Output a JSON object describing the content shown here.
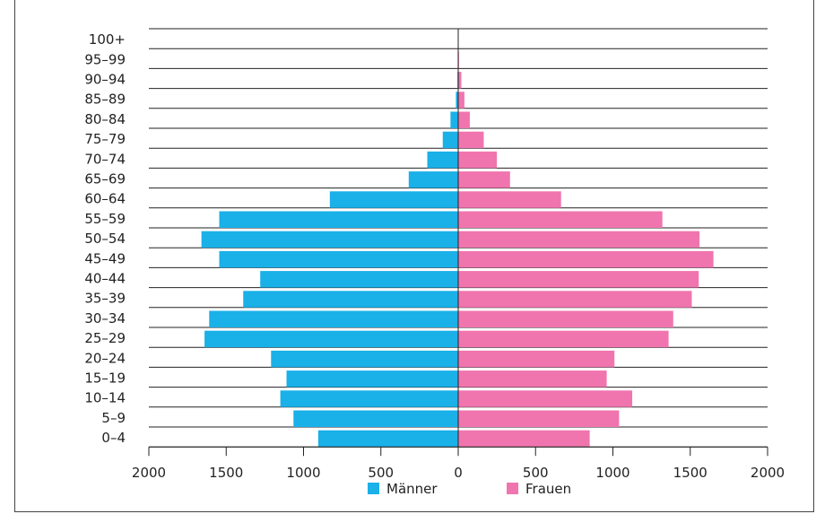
{
  "chart_data": {
    "type": "bar",
    "orientation": "horizontal",
    "categories": [
      "0–4",
      "5–9",
      "10–14",
      "15–19",
      "20–24",
      "25–29",
      "30–34",
      "35–39",
      "40–44",
      "45–49",
      "50–54",
      "55–59",
      "60–64",
      "65–69",
      "70–74",
      "75–79",
      "80–84",
      "85–89",
      "90–94",
      "95–99",
      "100+"
    ],
    "series": [
      {
        "name": "Männer",
        "color": "#1ab0e8",
        "values": [
          905,
          1065,
          1150,
          1110,
          1210,
          1640,
          1610,
          1390,
          1280,
          1545,
          1660,
          1545,
          830,
          320,
          200,
          100,
          50,
          15,
          5,
          1,
          0
        ]
      },
      {
        "name": "Frauen",
        "color": "#f075ae",
        "values": [
          850,
          1040,
          1125,
          960,
          1010,
          1360,
          1390,
          1510,
          1555,
          1650,
          1560,
          1320,
          665,
          335,
          250,
          165,
          75,
          40,
          20,
          5,
          1
        ]
      }
    ],
    "x_ticks": [
      "2000",
      "1500",
      "1000",
      "500",
      "0",
      "500",
      "1000",
      "1500",
      "2000"
    ],
    "xlim": [
      -2000,
      2000
    ],
    "grid": true,
    "legend_position": "bottom-center"
  }
}
